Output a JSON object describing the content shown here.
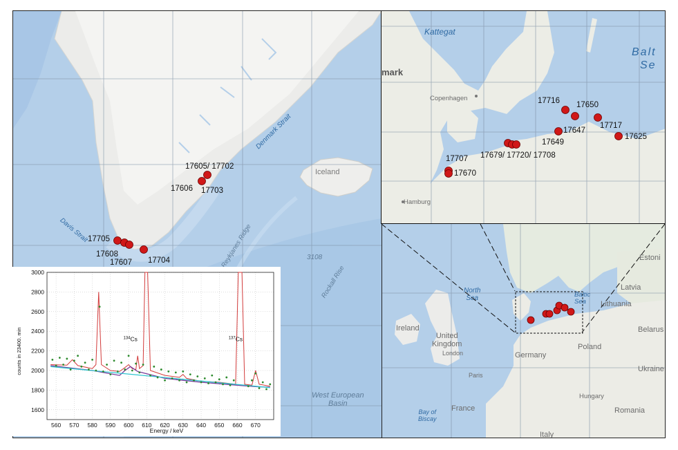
{
  "main_map": {
    "labels": {
      "iceland": "Iceland",
      "denmark_strait": "Denmark Strait",
      "davis_strait": "Davis Strait",
      "reykjanes_ridge": "Reykjanes Ridge",
      "depth": "3108",
      "rockall_rise": "Rockall Rise",
      "west_european_basin": "West European\nBasin"
    },
    "stations": [
      {
        "id": "st-17605-17702",
        "label": "17605/ 17702"
      },
      {
        "id": "st-17606",
        "label": "17606"
      },
      {
        "id": "st-17703",
        "label": "17703"
      },
      {
        "id": "st-17705",
        "label": "17705"
      },
      {
        "id": "st-17608",
        "label": "17608"
      },
      {
        "id": "st-17607",
        "label": "17607"
      },
      {
        "id": "st-17704",
        "label": "17704"
      }
    ]
  },
  "baltic_inset": {
    "labels": {
      "kattegat": "Kattegat",
      "baltic_sea": "Balt\nSe",
      "denmark_part": "mark",
      "copenhagen": "Copenhagen",
      "hamburg": "Hamburg"
    },
    "stations": [
      {
        "id": "st-17716",
        "label": "17716"
      },
      {
        "id": "st-17650",
        "label": "17650"
      },
      {
        "id": "st-17717",
        "label": "17717"
      },
      {
        "id": "st-17647",
        "label": "17647"
      },
      {
        "id": "st-17625",
        "label": "17625"
      },
      {
        "id": "st-17649",
        "label": "17649"
      },
      {
        "id": "st-17679-17720-17708",
        "label": "17679/ 17720/ 17708"
      },
      {
        "id": "st-17707",
        "label": "17707"
      },
      {
        "id": "st-17670",
        "label": "17670"
      }
    ]
  },
  "europe_map": {
    "labels": {
      "estonia": "Estoni",
      "latvia": "Latvia",
      "lithuania": "Lithuania",
      "baltic_sea": "Baltic\nSea",
      "north_sea": "North\nSea",
      "ireland": "Ireland",
      "united_kingdom": "United\nKingdom",
      "london": "London",
      "belarus": "Belarus",
      "poland": "Poland",
      "germany": "Germany",
      "paris": "Paris",
      "ukraine": "Ukraine",
      "france": "France",
      "hungary": "Hungary",
      "romania": "Romania",
      "bay_of_biscay": "Bay of\nBiscay",
      "italy": "Italy"
    }
  },
  "chart_data": {
    "type": "line",
    "title": "",
    "xlabel": "Energy / keV",
    "ylabel": "counts in 23400. min",
    "xlim": [
      555,
      680
    ],
    "ylim": [
      1500,
      3000
    ],
    "x_ticks": [
      560,
      570,
      580,
      590,
      600,
      610,
      620,
      630,
      640,
      650,
      660,
      670
    ],
    "y_ticks": [
      1600,
      1800,
      2000,
      2200,
      2400,
      2600,
      2800,
      3000
    ],
    "annotations": [
      {
        "text": "134Cs",
        "x": 601,
        "y": 2300
      },
      {
        "text": "137Cs",
        "x": 659,
        "y": 2300
      }
    ],
    "series": [
      {
        "style": "fitted spectrum",
        "color": "#d23a3a",
        "points": [
          [
            557,
            2060
          ],
          [
            566,
            2055
          ],
          [
            569,
            2110
          ],
          [
            572,
            2050
          ],
          [
            580,
            2020
          ],
          [
            582,
            2060
          ],
          [
            583.5,
            2800
          ],
          [
            585,
            2060
          ],
          [
            590,
            2000
          ],
          [
            595,
            1990
          ],
          [
            598,
            2030
          ],
          [
            600,
            2060
          ],
          [
            602,
            2020
          ],
          [
            604,
            2010
          ],
          [
            605,
            2150
          ],
          [
            606,
            2020
          ],
          [
            608,
            2050
          ],
          [
            609,
            3000
          ],
          [
            610.5,
            3000
          ],
          [
            612,
            2000
          ],
          [
            620,
            1950
          ],
          [
            628,
            1930
          ],
          [
            630,
            1960
          ],
          [
            632,
            1920
          ],
          [
            640,
            1890
          ],
          [
            650,
            1880
          ],
          [
            659,
            1860
          ],
          [
            660.5,
            3000
          ],
          [
            662.5,
            3000
          ],
          [
            664,
            1860
          ],
          [
            668,
            1850
          ],
          [
            670,
            2000
          ],
          [
            672,
            1860
          ],
          [
            678,
            1840
          ]
        ]
      },
      {
        "style": "background",
        "color": "#7a3a9a",
        "points": [
          [
            557,
            2050
          ],
          [
            580,
            2000
          ],
          [
            595,
            1950
          ],
          [
            598,
            2000
          ],
          [
            601,
            2040
          ],
          [
            605,
            1990
          ],
          [
            620,
            1920
          ],
          [
            640,
            1880
          ],
          [
            660,
            1850
          ],
          [
            670,
            1835
          ],
          [
            678,
            1830
          ]
        ]
      },
      {
        "style": "baseline",
        "color": "#2ec4cf",
        "points": [
          [
            557,
            2040
          ],
          [
            678,
            1825
          ]
        ]
      }
    ],
    "measured_points": {
      "color": "#2e8b2e",
      "points": [
        [
          558,
          2110
        ],
        [
          560,
          2050
        ],
        [
          562,
          2130
        ],
        [
          564,
          2060
        ],
        [
          566,
          2120
        ],
        [
          568,
          2010
        ],
        [
          570,
          2100
        ],
        [
          572,
          2150
        ],
        [
          574,
          2040
        ],
        [
          576,
          2080
        ],
        [
          578,
          2010
        ],
        [
          580,
          2110
        ],
        [
          582,
          2000
        ],
        [
          584,
          2650
        ],
        [
          586,
          1990
        ],
        [
          588,
          2060
        ],
        [
          590,
          1960
        ],
        [
          592,
          2100
        ],
        [
          594,
          1990
        ],
        [
          596,
          2080
        ],
        [
          598,
          2010
        ],
        [
          600,
          2150
        ],
        [
          602,
          2000
        ],
        [
          604,
          2070
        ],
        [
          606,
          1980
        ],
        [
          608,
          2060
        ],
        [
          612,
          1950
        ],
        [
          614,
          2040
        ],
        [
          616,
          1930
        ],
        [
          618,
          2010
        ],
        [
          620,
          1900
        ],
        [
          622,
          1990
        ],
        [
          624,
          1920
        ],
        [
          626,
          1980
        ],
        [
          628,
          1900
        ],
        [
          630,
          1990
        ],
        [
          632,
          1880
        ],
        [
          634,
          1960
        ],
        [
          636,
          1900
        ],
        [
          638,
          1940
        ],
        [
          640,
          1880
        ],
        [
          642,
          1920
        ],
        [
          644,
          1870
        ],
        [
          646,
          1950
        ],
        [
          648,
          1880
        ],
        [
          650,
          1910
        ],
        [
          652,
          1860
        ],
        [
          654,
          1930
        ],
        [
          656,
          1850
        ],
        [
          658,
          1900
        ],
        [
          666,
          1840
        ],
        [
          668,
          1900
        ],
        [
          670,
          1970
        ],
        [
          672,
          1820
        ],
        [
          674,
          1880
        ],
        [
          676,
          1810
        ],
        [
          678,
          1860
        ]
      ]
    }
  }
}
